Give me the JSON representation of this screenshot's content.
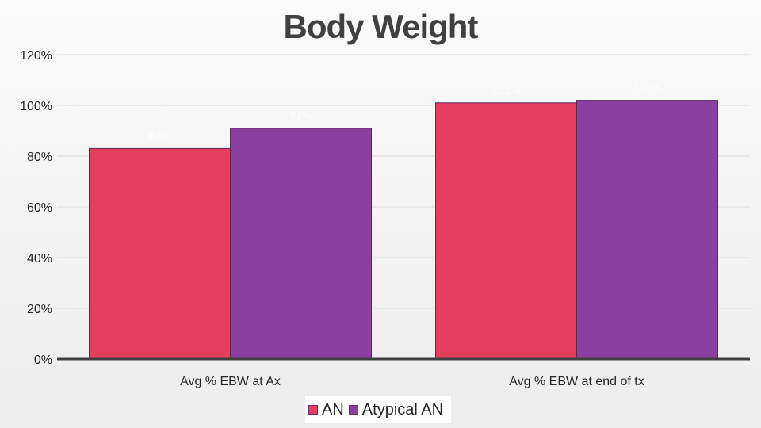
{
  "chart_data": {
    "type": "bar",
    "title": "Body Weight",
    "xlabel": "",
    "ylabel": "",
    "categories": [
      "Avg % EBW at Ax",
      "Avg % EBW at end of tx"
    ],
    "series": [
      {
        "name": "AN",
        "color": "#e43f5f",
        "values": [
          83,
          101
        ],
        "labels": [
          "83%",
          "101%"
        ]
      },
      {
        "name": "Atypical AN",
        "color": "#8b3fa0",
        "values": [
          91,
          102
        ],
        "labels": [
          "91%",
          "102%"
        ]
      }
    ],
    "ylim": [
      0,
      120
    ],
    "yticks": [
      0,
      20,
      40,
      60,
      80,
      100,
      120
    ],
    "ytick_labels": [
      "0%",
      "20%",
      "40%",
      "60%",
      "80%",
      "100%",
      "120%"
    ],
    "grid": true,
    "legend_position": "bottom"
  }
}
